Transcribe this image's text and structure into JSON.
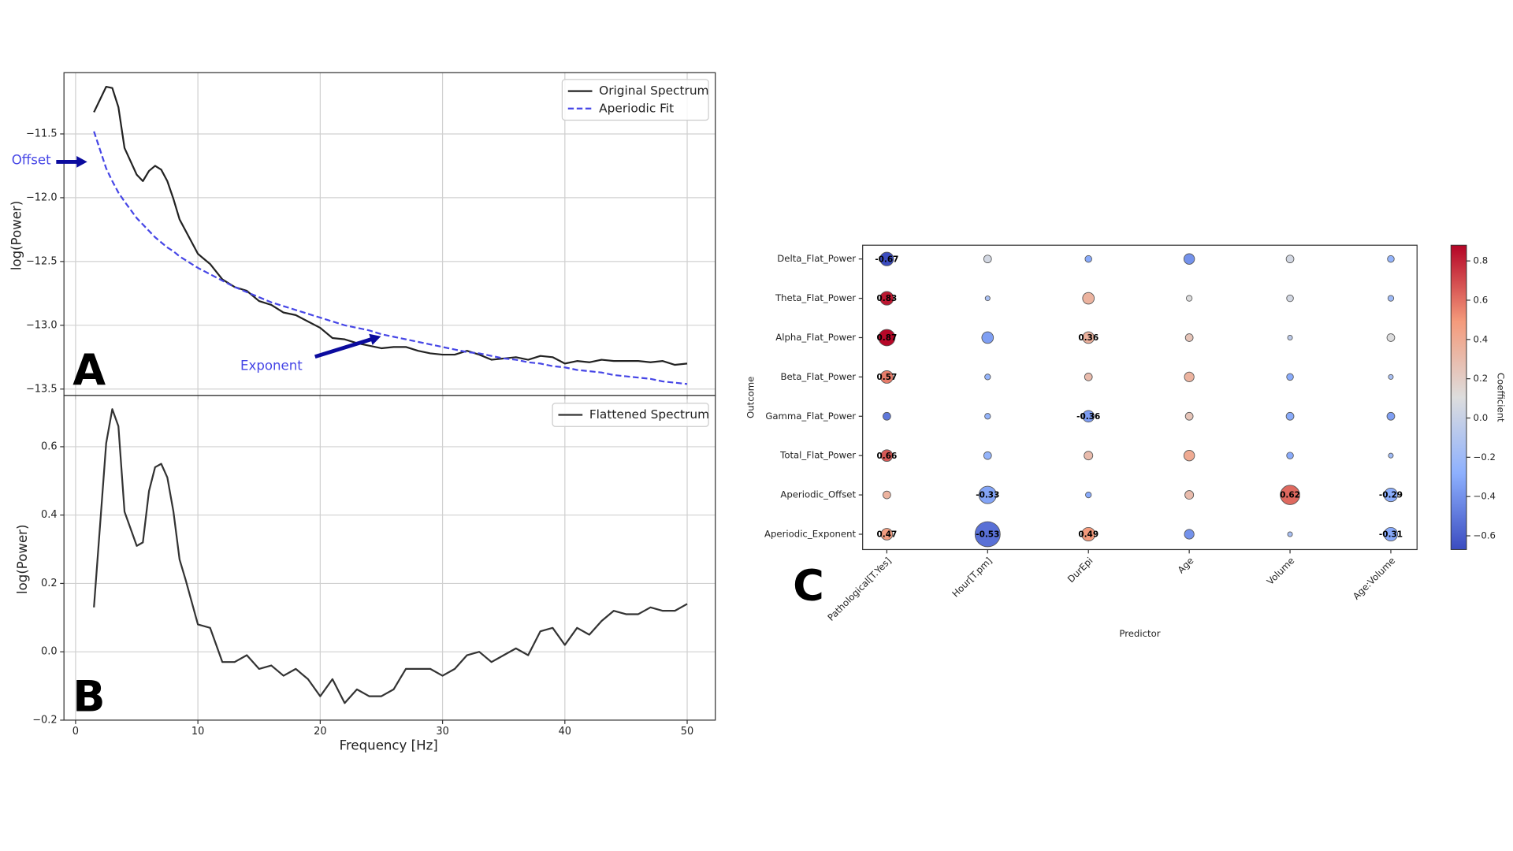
{
  "chart_data": [
    {
      "type": "line",
      "panel_label": "A",
      "ylabel": "log(Power)",
      "x": [
        1.5,
        2.5,
        3,
        3.5,
        4,
        5,
        5.5,
        6,
        6.5,
        7,
        7.5,
        8,
        8.5,
        9,
        10,
        11,
        12,
        13,
        14,
        15,
        16,
        17,
        18,
        19,
        20,
        21,
        22,
        23,
        24,
        25,
        26,
        27,
        28,
        29,
        30,
        31,
        32,
        33,
        34,
        35,
        36,
        37,
        38,
        39,
        40,
        41,
        42,
        43,
        44,
        45,
        46,
        47,
        48,
        49,
        50
      ],
      "series": [
        {
          "name": "Original Spectrum",
          "color": "#222222",
          "linestyle": "solid",
          "values": [
            -11.33,
            -11.13,
            -11.14,
            -11.29,
            -11.61,
            -11.82,
            -11.87,
            -11.79,
            -11.75,
            -11.78,
            -11.87,
            -12.01,
            -12.17,
            -12.26,
            -12.44,
            -12.52,
            -12.64,
            -12.7,
            -12.73,
            -12.81,
            -12.84,
            -12.9,
            -12.92,
            -12.97,
            -13.02,
            -13.1,
            -13.11,
            -13.14,
            -13.16,
            -13.18,
            -13.17,
            -13.17,
            -13.2,
            -13.22,
            -13.23,
            -13.23,
            -13.2,
            -13.23,
            -13.27,
            -13.26,
            -13.25,
            -13.27,
            -13.24,
            -13.25,
            -13.3,
            -13.28,
            -13.29,
            -13.27,
            -13.28,
            -13.28,
            -13.28,
            -13.29,
            -13.28,
            -13.31,
            -13.3
          ]
        },
        {
          "name": "Aperiodic Fit",
          "color": "#4646e6",
          "linestyle": "dashed",
          "values": [
            -11.48,
            -11.77,
            -11.87,
            -11.96,
            -12.03,
            -12.16,
            -12.21,
            -12.26,
            -12.31,
            -12.35,
            -12.39,
            -12.42,
            -12.46,
            -12.49,
            -12.55,
            -12.6,
            -12.65,
            -12.7,
            -12.74,
            -12.78,
            -12.82,
            -12.85,
            -12.88,
            -12.91,
            -12.94,
            -12.97,
            -13.0,
            -13.02,
            -13.04,
            -13.07,
            -13.09,
            -13.11,
            -13.13,
            -13.15,
            -13.17,
            -13.19,
            -13.21,
            -13.22,
            -13.24,
            -13.26,
            -13.27,
            -13.29,
            -13.3,
            -13.32,
            -13.33,
            -13.35,
            -13.36,
            -13.37,
            -13.39,
            -13.4,
            -13.41,
            -13.42,
            -13.44,
            -13.45,
            -13.46
          ]
        }
      ],
      "xlim": [
        -0.95,
        52.3
      ],
      "xticks": [
        0,
        10,
        20,
        30,
        40,
        50
      ],
      "show_xtick_labels": false,
      "ylim": [
        -13.55,
        -11.02
      ],
      "yticks": [
        {
          "value": -11.5,
          "label": "−11.5"
        },
        {
          "value": -12.0,
          "label": "−12.0"
        },
        {
          "value": -12.5,
          "label": "−12.5"
        },
        {
          "value": -13.0,
          "label": "−13.0"
        },
        {
          "value": -13.5,
          "label": "−13.5"
        }
      ],
      "grid": true,
      "legend": "upper right",
      "annotations": [
        {
          "text": "Offset",
          "color": "#4646e6"
        },
        {
          "text": "Exponent",
          "color": "#4646e6"
        }
      ]
    },
    {
      "type": "line",
      "panel_label": "B",
      "ylabel": "log(Power)",
      "xlabel": "Frequency [Hz]",
      "x": [
        1.5,
        2.5,
        3,
        3.5,
        4,
        5,
        5.5,
        6,
        6.5,
        7,
        7.5,
        8,
        8.5,
        9,
        10,
        11,
        12,
        13,
        14,
        15,
        16,
        17,
        18,
        19,
        20,
        21,
        22,
        23,
        24,
        25,
        26,
        27,
        28,
        29,
        30,
        31,
        32,
        33,
        34,
        35,
        36,
        37,
        38,
        39,
        40,
        41,
        42,
        43,
        44,
        45,
        46,
        47,
        48,
        49,
        50
      ],
      "series": [
        {
          "name": "Flattened Spectrum",
          "color": "#333333",
          "linestyle": "solid",
          "values": [
            0.13,
            0.61,
            0.71,
            0.66,
            0.41,
            0.31,
            0.32,
            0.47,
            0.54,
            0.55,
            0.51,
            0.41,
            0.27,
            0.21,
            0.08,
            0.07,
            -0.03,
            -0.03,
            -0.01,
            -0.05,
            -0.04,
            -0.07,
            -0.05,
            -0.08,
            -0.13,
            -0.08,
            -0.15,
            -0.11,
            -0.13,
            -0.13,
            -0.11,
            -0.05,
            -0.05,
            -0.05,
            -0.07,
            -0.05,
            -0.01,
            0.0,
            -0.03,
            -0.01,
            0.01,
            -0.01,
            0.06,
            0.07,
            0.02,
            0.07,
            0.05,
            0.09,
            0.12,
            0.11,
            0.11,
            0.13,
            0.12,
            0.12,
            0.14
          ]
        }
      ],
      "xlim": [
        -0.95,
        52.3
      ],
      "xticks": [
        0,
        10,
        20,
        30,
        40,
        50
      ],
      "show_xtick_labels": true,
      "ylim": [
        -0.2,
        0.75
      ],
      "yticks": [
        {
          "value": -0.2,
          "label": "−0.2"
        },
        {
          "value": 0.0,
          "label": "0.0"
        },
        0.2,
        0.4,
        0.6
      ],
      "grid": true,
      "legend": "upper right"
    },
    {
      "type": "bubble_matrix",
      "panel_label": "C",
      "xlabel": "Predictor",
      "ylabel": "Outcome",
      "colorbar_label": "Coefficient",
      "colormap": "coolwarm",
      "predictors": [
        "Pathological[T.Yes]",
        "Hour[T.pm]",
        "DurEpi",
        "Age",
        "Volume",
        "Age:Volume"
      ],
      "outcomes": [
        "Delta_Flat_Power",
        "Theta_Flat_Power",
        "Alpha_Flat_Power",
        "Beta_Flat_Power",
        "Gamma_Flat_Power",
        "Total_Flat_Power",
        "Aperiodic_Offset",
        "Aperiodic_Exponent"
      ],
      "values": [
        [
          -0.67,
          0.05,
          -0.3,
          -0.4,
          0.05,
          -0.25
        ],
        [
          0.83,
          -0.15,
          0.35,
          0.1,
          0.05,
          -0.2
        ],
        [
          0.87,
          -0.35,
          0.36,
          0.25,
          -0.05,
          0.1
        ],
        [
          0.57,
          -0.25,
          0.3,
          0.35,
          -0.3,
          -0.15
        ],
        [
          -0.5,
          -0.25,
          -0.36,
          0.25,
          -0.3,
          -0.35
        ],
        [
          0.66,
          -0.25,
          0.3,
          0.4,
          -0.3,
          -0.2
        ],
        [
          0.35,
          -0.33,
          -0.3,
          0.3,
          0.62,
          -0.29
        ],
        [
          0.47,
          -0.53,
          0.49,
          -0.4,
          -0.15,
          -0.31
        ]
      ],
      "value_labels": [
        [
          "-0.67",
          null,
          null,
          null,
          null,
          null
        ],
        [
          "0.83",
          null,
          null,
          null,
          null,
          null
        ],
        [
          "0.87",
          null,
          "0.36",
          null,
          null,
          null
        ],
        [
          "0.57",
          null,
          null,
          null,
          null,
          null
        ],
        [
          null,
          null,
          "-0.36",
          null,
          null,
          null
        ],
        [
          "0.66",
          null,
          null,
          null,
          null,
          null
        ],
        [
          null,
          "-0.33",
          null,
          null,
          "0.62",
          "-0.29"
        ],
        [
          "0.47",
          "-0.53",
          "0.49",
          null,
          null,
          "-0.31"
        ]
      ],
      "sizes": [
        [
          7,
          4,
          3.5,
          5.5,
          4,
          3.5
        ],
        [
          7,
          2.5,
          6,
          3,
          3.5,
          3
        ],
        [
          8.5,
          6,
          6,
          4,
          2.5,
          4
        ],
        [
          6.5,
          3,
          4,
          5,
          3.5,
          2.5
        ],
        [
          4,
          3,
          6,
          4,
          4,
          4
        ],
        [
          6,
          4,
          4.5,
          5.5,
          3.5,
          2.5
        ],
        [
          4,
          9,
          3,
          4.5,
          10,
          7
        ],
        [
          6,
          13,
          7,
          5,
          2.5,
          7
        ]
      ],
      "clim": [
        -0.67,
        0.88
      ],
      "cticks": [
        {
          "value": -0.6,
          "label": "−0.6"
        },
        {
          "value": -0.4,
          "label": "−0.4"
        },
        {
          "value": -0.2,
          "label": "−0.2"
        },
        {
          "value": 0.0,
          "label": "0.0"
        },
        0.2,
        0.4,
        0.6,
        0.8
      ]
    }
  ]
}
